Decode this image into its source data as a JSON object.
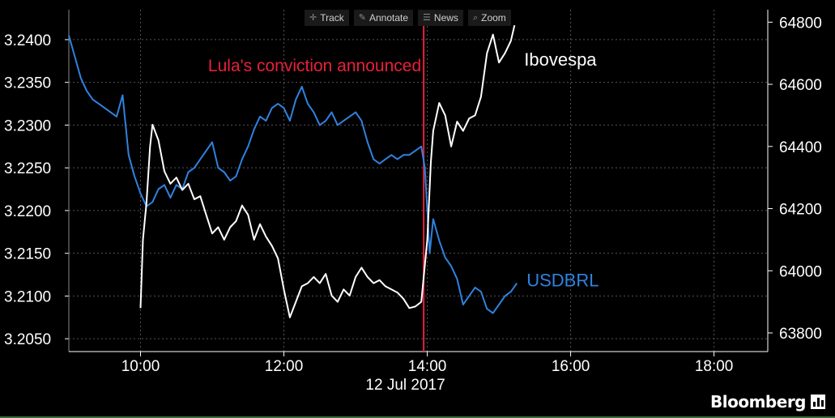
{
  "toolbar": {
    "track": "Track",
    "annotate": "Annotate",
    "news": "News",
    "zoom": "Zoom"
  },
  "brand": "Bloomberg",
  "colors": {
    "background": "#000000",
    "usdbrl": "#2f82e0",
    "ibovespa": "#ffffff",
    "event": "#e8203a",
    "grid": "#555555"
  },
  "chart_data": {
    "type": "line",
    "date_label": "12 Jul 2017",
    "x_ticks": [
      "10:00",
      "12:00",
      "14:00",
      "16:00",
      "18:00"
    ],
    "x_range": [
      "09:00",
      "18:45"
    ],
    "left_axis": {
      "ticks": [
        "3.2400",
        "3.2350",
        "3.2300",
        "3.2250",
        "3.2200",
        "3.2150",
        "3.2100",
        "3.2050"
      ],
      "range": [
        3.2035,
        3.2435
      ]
    },
    "right_axis": {
      "ticks": [
        "64800",
        "64600",
        "64400",
        "64200",
        "64000",
        "63800"
      ],
      "range": [
        63740,
        64840
      ]
    },
    "event": {
      "time": "13:57",
      "label": "Lula's conviction announced"
    },
    "series": [
      {
        "name": "USDBRL",
        "axis": "left",
        "color": "#2f82e0",
        "points": [
          [
            "09:00",
            3.2405
          ],
          [
            "09:05",
            3.238
          ],
          [
            "09:10",
            3.2355
          ],
          [
            "09:15",
            3.234
          ],
          [
            "09:20",
            3.233
          ],
          [
            "09:30",
            3.232
          ],
          [
            "09:40",
            3.231
          ],
          [
            "09:45",
            3.2335
          ],
          [
            "09:50",
            3.2265
          ],
          [
            "09:55",
            3.224
          ],
          [
            "10:00",
            3.222
          ],
          [
            "10:05",
            3.2205
          ],
          [
            "10:10",
            3.221
          ],
          [
            "10:15",
            3.2225
          ],
          [
            "10:20",
            3.223
          ],
          [
            "10:25",
            3.2215
          ],
          [
            "10:30",
            3.223
          ],
          [
            "10:35",
            3.2225
          ],
          [
            "10:40",
            3.2245
          ],
          [
            "10:45",
            3.225
          ],
          [
            "10:50",
            3.226
          ],
          [
            "10:55",
            3.227
          ],
          [
            "11:00",
            3.228
          ],
          [
            "11:05",
            3.225
          ],
          [
            "11:10",
            3.2245
          ],
          [
            "11:15",
            3.2235
          ],
          [
            "11:20",
            3.224
          ],
          [
            "11:25",
            3.226
          ],
          [
            "11:30",
            3.2275
          ],
          [
            "11:35",
            3.2295
          ],
          [
            "11:40",
            3.231
          ],
          [
            "11:45",
            3.2305
          ],
          [
            "11:50",
            3.232
          ],
          [
            "11:55",
            3.2325
          ],
          [
            "12:00",
            3.232
          ],
          [
            "12:05",
            3.2305
          ],
          [
            "12:10",
            3.233
          ],
          [
            "12:15",
            3.2345
          ],
          [
            "12:20",
            3.2325
          ],
          [
            "12:25",
            3.2315
          ],
          [
            "12:30",
            3.23
          ],
          [
            "12:35",
            3.2305
          ],
          [
            "12:40",
            3.2315
          ],
          [
            "12:45",
            3.23
          ],
          [
            "12:50",
            3.2305
          ],
          [
            "12:55",
            3.231
          ],
          [
            "13:00",
            3.2315
          ],
          [
            "13:05",
            3.2305
          ],
          [
            "13:10",
            3.228
          ],
          [
            "13:15",
            3.226
          ],
          [
            "13:20",
            3.2255
          ],
          [
            "13:25",
            3.226
          ],
          [
            "13:30",
            3.2265
          ],
          [
            "13:35",
            3.226
          ],
          [
            "13:40",
            3.2265
          ],
          [
            "13:45",
            3.2265
          ],
          [
            "13:50",
            3.227
          ],
          [
            "13:55",
            3.2275
          ],
          [
            "13:58",
            3.225
          ],
          [
            "14:00",
            3.22
          ],
          [
            "14:02",
            3.215
          ],
          [
            "14:05",
            3.219
          ],
          [
            "14:10",
            3.2165
          ],
          [
            "14:15",
            3.2145
          ],
          [
            "14:20",
            3.2135
          ],
          [
            "14:25",
            3.212
          ],
          [
            "14:30",
            3.209
          ],
          [
            "14:35",
            3.21
          ],
          [
            "14:40",
            3.211
          ],
          [
            "14:45",
            3.2105
          ],
          [
            "14:50",
            3.2085
          ],
          [
            "14:55",
            3.208
          ],
          [
            "15:00",
            3.209
          ],
          [
            "15:05",
            3.21
          ],
          [
            "15:10",
            3.2105
          ],
          [
            "15:15",
            3.2115
          ]
        ]
      },
      {
        "name": "Ibovespa",
        "axis": "right",
        "color": "#ffffff",
        "points": [
          [
            "10:00",
            63880
          ],
          [
            "10:02",
            64100
          ],
          [
            "10:05",
            64220
          ],
          [
            "10:08",
            64400
          ],
          [
            "10:10",
            64470
          ],
          [
            "10:15",
            64420
          ],
          [
            "10:20",
            64320
          ],
          [
            "10:25",
            64280
          ],
          [
            "10:30",
            64300
          ],
          [
            "10:35",
            64260
          ],
          [
            "10:40",
            64280
          ],
          [
            "10:45",
            64230
          ],
          [
            "10:50",
            64240
          ],
          [
            "10:55",
            64180
          ],
          [
            "11:00",
            64120
          ],
          [
            "11:05",
            64140
          ],
          [
            "11:10",
            64100
          ],
          [
            "11:15",
            64140
          ],
          [
            "11:20",
            64160
          ],
          [
            "11:25",
            64210
          ],
          [
            "11:30",
            64180
          ],
          [
            "11:35",
            64100
          ],
          [
            "11:40",
            64150
          ],
          [
            "11:45",
            64110
          ],
          [
            "11:50",
            64080
          ],
          [
            "11:55",
            64040
          ],
          [
            "12:00",
            63940
          ],
          [
            "12:05",
            63850
          ],
          [
            "12:10",
            63900
          ],
          [
            "12:15",
            63950
          ],
          [
            "12:20",
            63960
          ],
          [
            "12:25",
            63980
          ],
          [
            "12:30",
            63960
          ],
          [
            "12:35",
            63990
          ],
          [
            "12:40",
            63920
          ],
          [
            "12:45",
            63900
          ],
          [
            "12:50",
            63940
          ],
          [
            "12:55",
            63920
          ],
          [
            "13:00",
            63980
          ],
          [
            "13:05",
            64010
          ],
          [
            "13:10",
            63980
          ],
          [
            "13:15",
            63960
          ],
          [
            "13:20",
            63970
          ],
          [
            "13:25",
            63950
          ],
          [
            "13:30",
            63940
          ],
          [
            "13:35",
            63930
          ],
          [
            "13:40",
            63910
          ],
          [
            "13:45",
            63880
          ],
          [
            "13:50",
            63885
          ],
          [
            "13:55",
            63900
          ],
          [
            "14:00",
            64100
          ],
          [
            "14:03",
            64350
          ],
          [
            "14:05",
            64450
          ],
          [
            "14:10",
            64540
          ],
          [
            "14:15",
            64500
          ],
          [
            "14:20",
            64400
          ],
          [
            "14:25",
            64480
          ],
          [
            "14:30",
            64450
          ],
          [
            "14:35",
            64490
          ],
          [
            "14:40",
            64500
          ],
          [
            "14:45",
            64560
          ],
          [
            "14:50",
            64700
          ],
          [
            "14:55",
            64760
          ],
          [
            "15:00",
            64670
          ],
          [
            "15:05",
            64700
          ],
          [
            "15:10",
            64740
          ],
          [
            "15:13",
            64790
          ]
        ]
      }
    ]
  }
}
